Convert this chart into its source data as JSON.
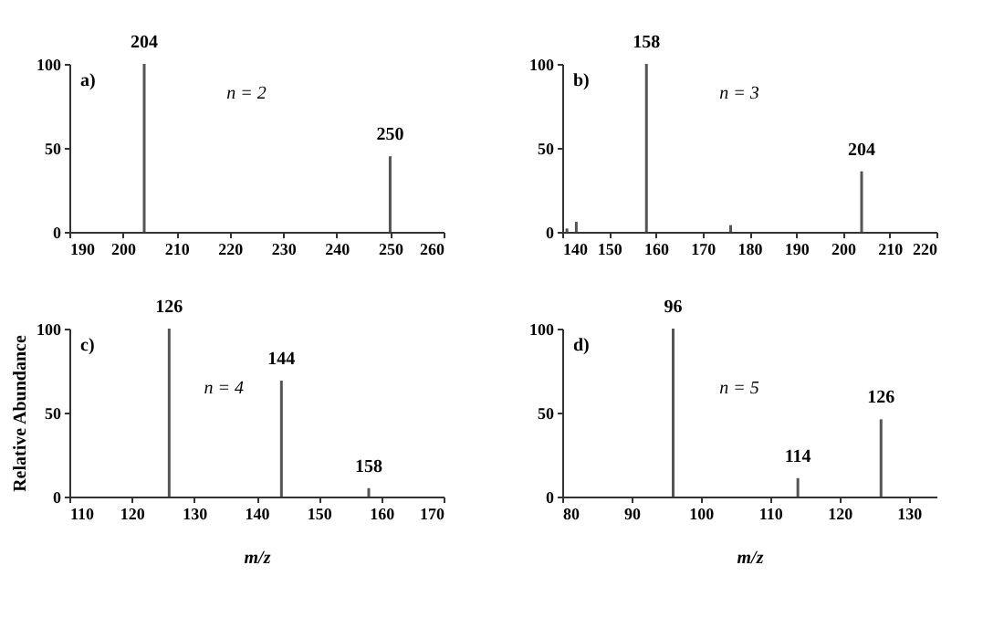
{
  "chart_data": [
    {
      "type": "bar",
      "x": [
        204,
        250
      ],
      "values": [
        100,
        45
      ],
      "color": "#555555",
      "xlim": [
        190,
        260
      ],
      "xticks": [
        190,
        200,
        210,
        220,
        230,
        240,
        250,
        260
      ],
      "ylim": [
        0,
        100
      ],
      "yticks": [
        0,
        50,
        100
      ],
      "grid": false,
      "annotations": [
        "a)",
        "n = 2",
        {
          "text": "204",
          "x": 204,
          "y": 100
        },
        {
          "text": "250",
          "x": 250,
          "y": 45
        }
      ]
    },
    {
      "type": "bar",
      "x": [
        141,
        143,
        158,
        176,
        204
      ],
      "values": [
        2,
        6,
        100,
        4,
        36
      ],
      "color": "#555555",
      "xlim": [
        140,
        220
      ],
      "xticks": [
        140,
        150,
        160,
        170,
        180,
        190,
        200,
        210,
        220
      ],
      "ylim": [
        0,
        100
      ],
      "yticks": [
        0,
        50,
        100
      ],
      "grid": false,
      "annotations": [
        "b)",
        "n = 3",
        {
          "text": "158",
          "x": 158,
          "y": 100
        },
        {
          "text": "204",
          "x": 204,
          "y": 36
        }
      ]
    },
    {
      "type": "bar",
      "x": [
        126,
        144,
        158
      ],
      "values": [
        100,
        69,
        5
      ],
      "color": "#555555",
      "xlim": [
        110,
        170
      ],
      "xticks": [
        110,
        120,
        130,
        140,
        150,
        160,
        170
      ],
      "ylim": [
        0,
        100
      ],
      "yticks": [
        0,
        50,
        100
      ],
      "grid": false,
      "xlabel": "m/z",
      "ylabel": "Relative Abundance",
      "annotations": [
        "c)",
        "n = 4",
        {
          "text": "126",
          "x": 126,
          "y": 100
        },
        {
          "text": "144",
          "x": 144,
          "y": 69
        },
        {
          "text": "158",
          "x": 158,
          "y": 5
        }
      ]
    },
    {
      "type": "bar",
      "x": [
        96,
        114,
        126
      ],
      "values": [
        100,
        11,
        46
      ],
      "color": "#555555",
      "xlim": [
        80,
        134
      ],
      "xticks": [
        80,
        90,
        100,
        110,
        120,
        130
      ],
      "ylim": [
        0,
        100
      ],
      "yticks": [
        0,
        50,
        100
      ],
      "grid": false,
      "xlabel": "m/z",
      "annotations": [
        "d)",
        "n = 5",
        {
          "text": "96",
          "x": 96,
          "y": 100
        },
        {
          "text": "114",
          "x": 114,
          "y": 11
        },
        {
          "text": "126",
          "x": 126,
          "y": 46
        }
      ]
    }
  ]
}
